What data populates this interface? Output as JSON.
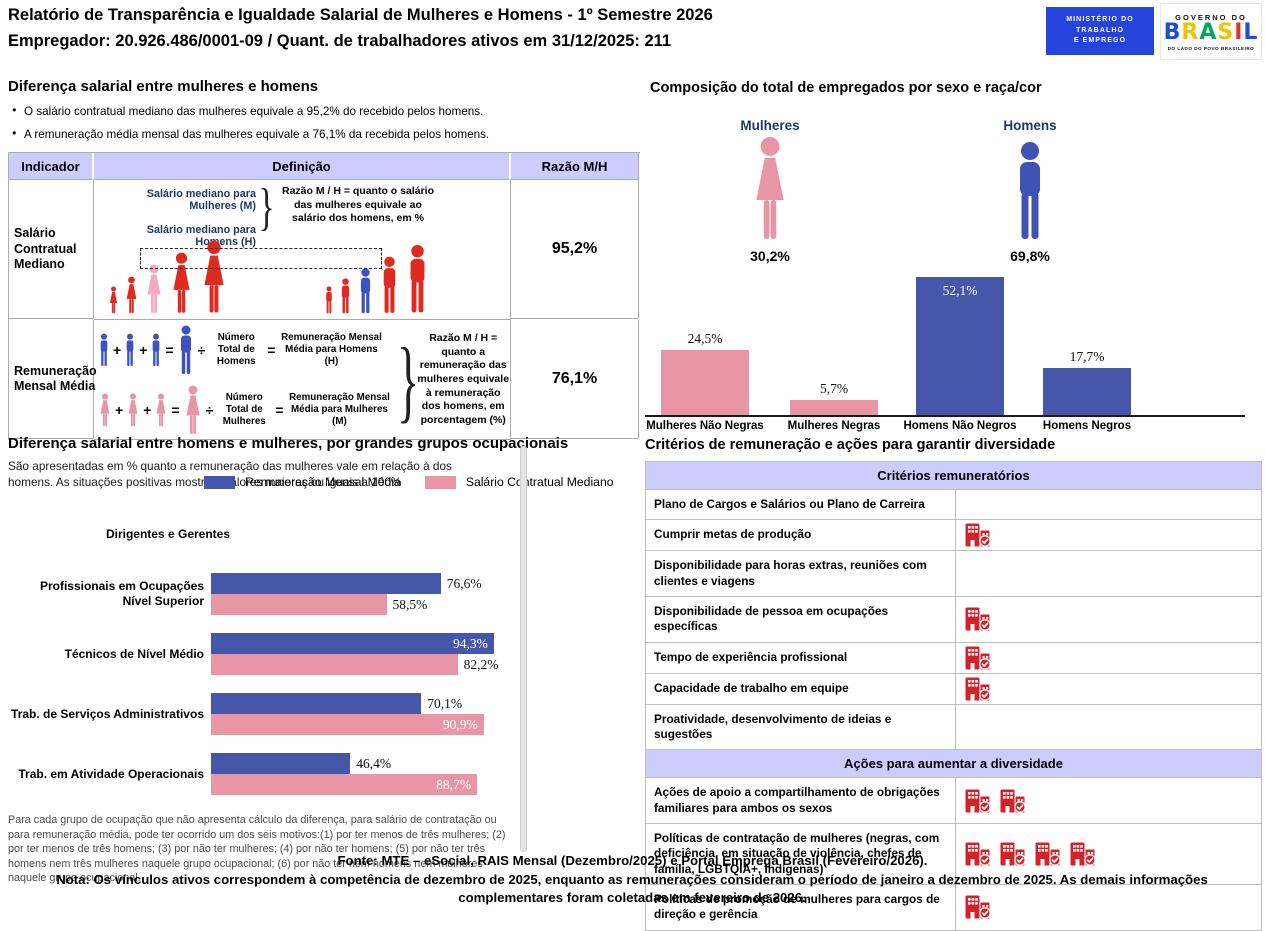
{
  "header": {
    "title": "Relatório de Transparência e Igualdade Salarial de Mulheres e Homens - 1º Semestre 2026",
    "subtitle": "Empregador: 20.926.486/0001-09 / Quant. de trabalhadores ativos em 31/12/2025: 211",
    "logo_mte": {
      "line1": "MINISTÉRIO DO",
      "line2": "TRABALHO",
      "line3": "E EMPREGO"
    },
    "logo_brasil": {
      "top": "GOVERNO DO",
      "letters": [
        {
          "ch": "B"
        },
        {
          "ch": "R"
        },
        {
          "ch": "A"
        },
        {
          "ch": "S"
        },
        {
          "ch": "I"
        },
        {
          "ch": "L"
        }
      ],
      "bottom": "DO LADO DO POVO BRASILEIRO"
    }
  },
  "symbols": {
    "plus": "+",
    "equals": "=",
    "divide": "÷",
    "brace": "}"
  },
  "salary_diff": {
    "heading": "Diferença salarial entre mulheres e homens",
    "bullet1": "O salário contratual mediano das mulheres equivale a 95,2% do recebido pelos homens.",
    "bullet2": "A remuneração média mensal das mulheres equivale a 76,1% da recebida pelos homens.",
    "table": {
      "header_indicador": "Indicador",
      "header_definicao": "Definição",
      "header_razao": "Razão M/H",
      "row1": {
        "indicator": "Salário Contratual Mediano",
        "def_line1": "Salário mediano para Mulheres (M)",
        "def_line2": "Salário mediano para Homens (H)",
        "ratio_note": "Razão M / H = quanto o salário das mulheres equivale ao salário dos homens, em %",
        "value": "95,2%"
      },
      "row2": {
        "indicator": "Remuneração Mensal Média",
        "men_label": "Número Total de Homens",
        "men_result": "Remuneração Mensal Média para Homens (H)",
        "women_label": "Número Total de Mulheres",
        "women_result": "Remuneração Mensal Média para Mulheres (M)",
        "ratio_note": "Razão M / H = quanto a remuneração das mulheres equivale à remuneração dos homens, em porcentagem (%)",
        "value": "76,1%"
      }
    }
  },
  "composition": {
    "heading": "Composição do total de empregados por sexo e raça/cor",
    "women_label": "Mulheres",
    "women_pct": "30,2%",
    "men_label": "Homens",
    "men_pct": "69,8%",
    "bars": [
      {
        "label": "Mulheres Não Negras",
        "value": 24.5,
        "value_label": "24,5%"
      },
      {
        "label": "Mulheres Negras",
        "value": 5.7,
        "value_label": "5,7%"
      },
      {
        "label": "Homens Não Negros",
        "value": 52.1,
        "value_label": "52,1%"
      },
      {
        "label": "Homens Negros",
        "value": 17.7,
        "value_label": "17,7%"
      }
    ]
  },
  "occupational": {
    "heading": "Diferença salarial entre homens e mulheres, por grandes grupos ocupacionais",
    "subtext": "São apresentadas em % quanto a remuneração das mulheres vale em relação à dos homens. As situações positivas mostram valores maiores ou iguais a 100%",
    "legend_blue": "Remuneração Mensal Média",
    "legend_pink": "Salário Contratual Mediano",
    "groups": [
      {
        "label": "Dirigentes e Gerentes",
        "blue": null,
        "pink": null
      },
      {
        "label": "Profissionais em Ocupações Nível Superior",
        "blue": 76.6,
        "blue_label": "76,6%",
        "pink": 58.5,
        "pink_label": "58,5%"
      },
      {
        "label": "Técnicos de Nível Médio",
        "blue": 94.3,
        "blue_label": "94,3%",
        "pink": 82.2,
        "pink_label": "82,2%"
      },
      {
        "label": "Trab. de Serviços Administrativos",
        "blue": 70.1,
        "blue_label": "70,1%",
        "pink": 90.9,
        "pink_label": "90,9%"
      },
      {
        "label": "Trab. em Atividade Operacionais",
        "blue": 46.4,
        "blue_label": "46,4%",
        "pink": 88.7,
        "pink_label": "88,7%"
      }
    ],
    "footnote": "Para cada grupo de ocupação que não apresenta cálculo da diferença, para salário de contratação ou para remuneração média, pode ter ocorrido um dos seis motivos:(1) por ter menos de três mulheres; (2) por ter menos de três homens; (3) por não ter mulheres; (4) por não ter homens; (5) por não ter três homens nem três mulheres naquele grupo ocupacional; (6) por não ter nem homens nem mulheres naquele grupo ocupacional."
  },
  "criteria": {
    "heading": "Critérios de remuneração e ações para garantir diversidade",
    "sections": [
      {
        "title": "Critérios remuneratórios",
        "rows": [
          {
            "label": "Plano de Cargos e Salários ou Plano de Carreira",
            "icons": 0
          },
          {
            "label": "Cumprir metas de produção",
            "icons": 1
          },
          {
            "label": "Disponibilidade para horas extras, reuniões com clientes e viagens",
            "icons": 0
          },
          {
            "label": "Disponibilidade de pessoa em ocupações específicas",
            "icons": 1
          },
          {
            "label": "Tempo de experiência profissional",
            "icons": 1
          },
          {
            "label": "Capacidade de trabalho em equipe",
            "icons": 1
          },
          {
            "label": "Proatividade, desenvolvimento de ideias e sugestões",
            "icons": 0
          }
        ]
      },
      {
        "title": "Ações para aumentar a diversidade",
        "rows": [
          {
            "label": "Ações de apoio a compartilhamento de obrigações familiares para ambos os sexos",
            "icons": 2
          },
          {
            "label": "Políticas de contratação de mulheres (negras, com deficiência, em situação de violência, chefes de família, LGBTQIA+, Indígenas)",
            "icons": 4
          },
          {
            "label": "Políticas de promoção de mulheres para cargos de direção e gerência",
            "icons": 1
          }
        ]
      }
    ]
  },
  "footer": {
    "fonte": "Fonte: MTE – eSocial, RAIS Mensal (Dezembro/2025) e Portal Emprega Brasil (Fevereiro/2026).",
    "nota": "Nota: Os vínculos ativos correspondem à competência de dezembro de 2025, enquanto as remunerações consideram o período de janeiro a dezembro de 2025. As demais informações complementares foram coletadas em fevereiro de 2026."
  },
  "colors": {
    "bar_blue": "#4656A8",
    "bar_pink": "#E896A6",
    "figure_red": "#DF2A20",
    "highlight_pink": "#F2ABC0",
    "highlight_blue": "#3D51C0",
    "table_header_lavender": "#CCCCFF",
    "navy_text": "#1F3864",
    "icon_red": "#D3222A",
    "mte_blue": "#2544DC"
  },
  "chart_data": [
    {
      "type": "bar",
      "title": "Composição do total de empregados por sexo e raça/cor",
      "categories": [
        "Mulheres Não Negras",
        "Mulheres Negras",
        "Homens Não Negros",
        "Homens Negros"
      ],
      "values": [
        24.5,
        5.7,
        52.1,
        17.7
      ],
      "unit": "%",
      "bar_colors": [
        "#E896A6",
        "#E896A6",
        "#4656A8",
        "#4656A8"
      ],
      "annotations": {
        "Mulheres": 30.2,
        "Homens": 69.8
      },
      "ylim": [
        0,
        55
      ],
      "grid": false,
      "legend": "none"
    },
    {
      "type": "bar",
      "orientation": "horizontal",
      "title": "Diferença salarial entre homens e mulheres, por grandes grupos ocupacionais",
      "categories": [
        "Dirigentes e Gerentes",
        "Profissionais em Ocupações Nível Superior",
        "Técnicos de Nível Médio",
        "Trab. de Serviços Administrativos",
        "Trab. em Atividade Operacionais"
      ],
      "series": [
        {
          "name": "Remuneração Mensal Média",
          "color": "#4656A8",
          "values": [
            null,
            76.6,
            94.3,
            70.1,
            46.4
          ]
        },
        {
          "name": "Salário Contratual Mediano",
          "color": "#E896A6",
          "values": [
            null,
            58.5,
            82.2,
            90.9,
            88.7
          ]
        }
      ],
      "unit": "%",
      "xlim": [
        0,
        100
      ],
      "grid": false,
      "legend_position": "top"
    }
  ]
}
